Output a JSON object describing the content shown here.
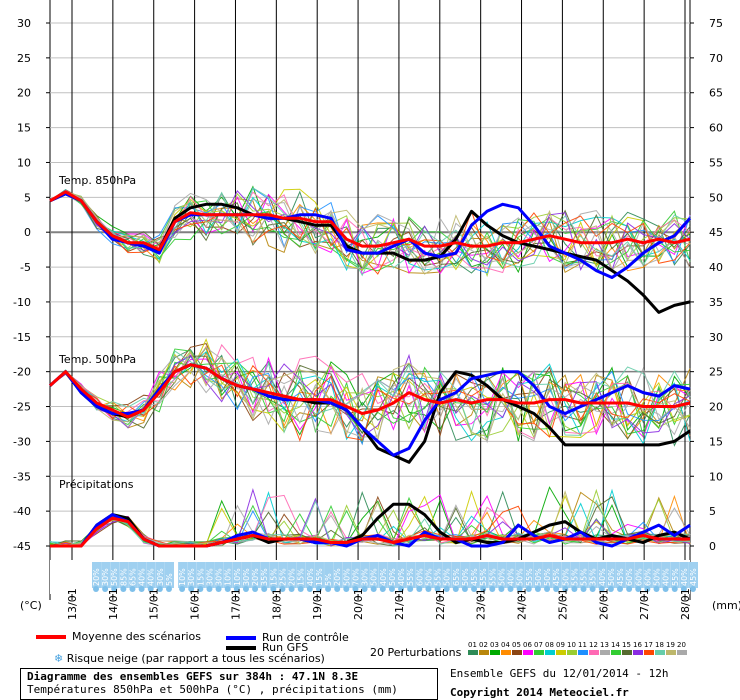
{
  "chart_data": {
    "type": "line",
    "title": "Diagramme des ensembles GEFS sur 384h : 47.1N 8.3E",
    "subtitle": "Températures 850hPa et 500hPa (°C) , précipitations (mm)",
    "left_axis": {
      "unit_label": "(°C)",
      "range": [
        -45,
        30
      ],
      "ticks": [
        30,
        25,
        20,
        15,
        10,
        5,
        0,
        -5,
        -10,
        -15,
        -20,
        -25,
        -30,
        -35,
        -40,
        -45
      ]
    },
    "right_axis": {
      "unit_label": "(mm)",
      "ticks": [
        75,
        70,
        65,
        60,
        55,
        50,
        45,
        40,
        35,
        30,
        25,
        20,
        15,
        10,
        5,
        0
      ]
    },
    "x_labels": [
      "13/01",
      "14/01",
      "15/01",
      "16/01",
      "17/01",
      "18/01",
      "19/01",
      "20/01",
      "21/01",
      "22/01",
      "23/01",
      "24/01",
      "25/01",
      "26/01",
      "27/01",
      "28/01"
    ],
    "sections": [
      "Temp. 850hPa",
      "Temp. 500hPa",
      "Précipitations"
    ],
    "snow_risk": [
      "20%",
      "30%",
      "50%",
      "85%",
      "65%",
      "40%",
      "40%",
      "30%",
      "5%",
      "10%",
      "30%",
      "15%",
      "30%",
      "30%",
      "10%",
      "10%",
      "30%",
      "20%",
      "35%",
      "15%",
      "25%",
      "20%",
      "15%",
      "40%",
      "15%",
      "5%",
      "20%",
      "50%",
      "70%",
      "30%",
      "50%",
      "40%",
      "50%",
      "40%",
      "55%",
      "60%",
      "50%",
      "55%",
      "50%",
      "65%",
      "50%",
      "45%",
      "55%",
      "55%",
      "50%",
      "40%",
      "50%",
      "55%",
      "50%",
      "50%",
      "45%",
      "50%",
      "55%",
      "55%",
      "35%",
      "40%",
      "50%",
      "45%",
      "60%",
      "60%",
      "60%",
      "50%",
      "40%",
      "55%",
      "40%",
      "45%"
    ],
    "series": [
      {
        "name": "Moyenne des scénarios",
        "group": "t850",
        "color": "#ff0000",
        "values": [
          4.5,
          5.8,
          4.5,
          1.5,
          -0.5,
          -1.5,
          -1.5,
          -2.5,
          1.5,
          2.8,
          2.5,
          2.5,
          2.5,
          2.5,
          2.5,
          2.0,
          2.0,
          1.5,
          1.5,
          -1.0,
          -2.0,
          -2.0,
          -1.5,
          -1.0,
          -2.0,
          -2.0,
          -1.5,
          -2.0,
          -2.0,
          -1.5,
          -1.5,
          -1.0,
          -0.5,
          -1.0,
          -1.5,
          -1.5,
          -1.5,
          -1.0,
          -1.5,
          -1.0,
          -1.5,
          -1.0
        ]
      },
      {
        "name": "Run de contrôle",
        "group": "t850",
        "color": "#0000ff",
        "values": [
          4.5,
          5.5,
          4.5,
          1.5,
          -1.0,
          -1.5,
          -2.0,
          -3.0,
          1.5,
          2.5,
          2.5,
          2.5,
          2.5,
          2.5,
          2.0,
          2.0,
          2.5,
          2.5,
          2.0,
          -2.5,
          -3.0,
          -3.0,
          -2.0,
          -1.0,
          -3.0,
          -3.5,
          -3.0,
          1.0,
          3.0,
          4.0,
          3.5,
          1.0,
          -2.0,
          -3.0,
          -4.0,
          -5.5,
          -6.5,
          -5.0,
          -3.0,
          -1.5,
          -0.5,
          2.0
        ]
      },
      {
        "name": "Run GFS",
        "group": "t850",
        "color": "#000000",
        "values": [
          4.5,
          5.5,
          4.5,
          1.5,
          -0.5,
          -1.5,
          -2.0,
          -2.5,
          2.0,
          3.5,
          4.0,
          4.0,
          3.5,
          2.5,
          2.0,
          2.0,
          1.5,
          1.0,
          1.0,
          -2.0,
          -3.0,
          -3.0,
          -3.0,
          -4.0,
          -4.0,
          -3.5,
          -1.0,
          3.0,
          1.0,
          -0.5,
          -1.5,
          -2.0,
          -2.5,
          -3.0,
          -3.5,
          -4.0,
          -5.5,
          -7.0,
          -9.0,
          -11.5,
          -10.5,
          -10.0
        ]
      },
      {
        "name": "Moyenne des scénarios",
        "group": "t500",
        "color": "#ff0000",
        "values": [
          -22,
          -20,
          -22.5,
          -24.5,
          -25.5,
          -26.5,
          -25.5,
          -23,
          -20,
          -19,
          -19.5,
          -21,
          -22,
          -22.5,
          -23,
          -23.5,
          -24,
          -24,
          -24,
          -25,
          -26,
          -25.5,
          -24.5,
          -23,
          -24,
          -24.5,
          -24,
          -24.5,
          -24,
          -24,
          -24.5,
          -24.5,
          -24,
          -24,
          -24.5,
          -24.5,
          -24.5,
          -24.5,
          -25,
          -25,
          -25,
          -24.5
        ]
      },
      {
        "name": "Run de contrôle",
        "group": "t500",
        "color": "#0000ff",
        "values": [
          -22,
          -20,
          -23,
          -25,
          -26,
          -26,
          -25.5,
          -22.5,
          -20,
          -19,
          -19.5,
          -21,
          -22,
          -22.5,
          -23.5,
          -24,
          -24,
          -24,
          -24.5,
          -25.5,
          -28,
          -30,
          -32,
          -31,
          -27,
          -24,
          -23,
          -21,
          -20.5,
          -20,
          -20,
          -22,
          -25,
          -26,
          -25,
          -24,
          -23,
          -22,
          -23,
          -23.5,
          -22,
          -22.5
        ]
      },
      {
        "name": "Run GFS",
        "group": "t500",
        "color": "#000000",
        "values": [
          -22,
          -20,
          -23,
          -25,
          -26,
          -26.5,
          -25.5,
          -22.5,
          -20,
          -19,
          -19.5,
          -21,
          -22,
          -22.5,
          -23.5,
          -24,
          -24,
          -24.5,
          -24.5,
          -25.5,
          -28,
          -31,
          -32,
          -33,
          -30,
          -23,
          -20,
          -20.5,
          -22,
          -24,
          -25,
          -26,
          -28,
          -30.5,
          -30.5,
          -30.5,
          -30.5,
          -30.5,
          -30.5,
          -30.5,
          -30,
          -28.5
        ]
      },
      {
        "name": "Moyenne des scénarios",
        "group": "precip",
        "color": "#ff0000",
        "values": [
          0,
          0,
          0,
          2.5,
          4,
          3.5,
          1,
          0,
          0,
          0,
          0,
          0.5,
          1,
          1.5,
          1,
          1,
          1,
          1,
          0.5,
          0.5,
          1,
          1,
          0.5,
          1,
          1.5,
          1,
          1,
          1,
          1.5,
          1,
          1,
          1,
          1.5,
          1,
          1,
          1,
          1,
          1,
          1.5,
          1,
          1,
          1
        ]
      },
      {
        "name": "Run de contrôle",
        "group": "precip",
        "color": "#0000ff",
        "values": [
          0,
          0,
          0,
          3,
          4.5,
          3.5,
          1,
          0,
          0,
          0,
          0,
          0.5,
          1.5,
          2,
          1,
          1,
          1,
          0.5,
          0.5,
          0,
          1,
          1.5,
          0.5,
          0,
          2,
          1,
          1,
          0,
          0,
          0.5,
          3,
          1.5,
          0.5,
          1,
          2,
          0.5,
          0,
          1,
          2,
          3,
          1.5,
          3
        ]
      },
      {
        "name": "Run GFS",
        "group": "precip",
        "color": "#000000",
        "values": [
          0,
          0,
          0,
          3,
          4.5,
          4,
          1,
          0,
          0,
          0,
          0,
          0.5,
          1,
          1.5,
          0.5,
          1,
          1,
          0.5,
          0.5,
          0.5,
          1.5,
          4,
          6,
          6,
          4.5,
          2,
          0.5,
          1,
          0.5,
          0.5,
          1,
          2,
          3,
          3.5,
          2,
          1,
          1.5,
          1,
          0.5,
          1.5,
          2,
          1
        ]
      }
    ]
  },
  "legend": {
    "mean": "Moyenne des scénarios",
    "control": "Run de contrôle",
    "gfs": "Run GFS",
    "snow": "Risque neige (par rapport a tous les scénarios)",
    "perturbations": "20 Perturbations",
    "pert_ids": [
      "01",
      "02",
      "03",
      "04",
      "05",
      "06",
      "07",
      "08",
      "09",
      "10",
      "11",
      "12",
      "13",
      "14",
      "15",
      "16",
      "17",
      "18",
      "19",
      "20"
    ],
    "pert_colors": [
      "#2e8b57",
      "#b8860b",
      "#00aa00",
      "#ff8c00",
      "#8b4513",
      "#ff00ff",
      "#33cc33",
      "#00ced1",
      "#cccc00",
      "#9acd32",
      "#1e90ff",
      "#ff69b4",
      "#aaaaaa",
      "#32cd32",
      "#556b2f",
      "#8a2be2",
      "#ff4500",
      "#66cdaa",
      "#bdb76b",
      "#a9a9a9"
    ]
  },
  "footer": {
    "box_title": "Diagramme des ensembles GEFS sur 384h : 47.1N 8.3E",
    "box_subtitle": "Températures 850hPa et 500hPa (°C) , précipitations (mm)",
    "run": "Ensemble GEFS du 12/01/2014 - 12h",
    "copyright": "Copyright 2014 Meteociel.fr"
  }
}
